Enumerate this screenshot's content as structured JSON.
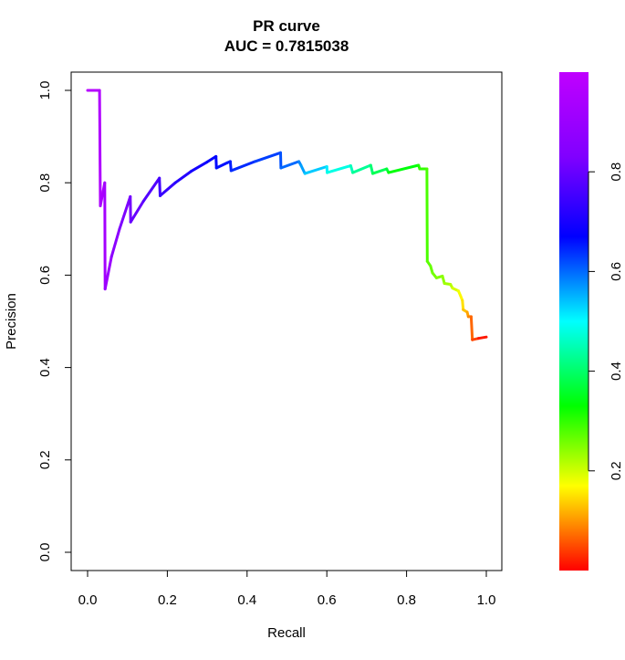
{
  "chart_data": {
    "type": "line",
    "title": "PR curve",
    "subtitle": "AUC = 0.7815038",
    "xlabel": "Recall",
    "ylabel": "Precision",
    "xlim": [
      0,
      1
    ],
    "ylim": [
      0,
      1
    ],
    "x_ticks": [
      "0.0",
      "0.2",
      "0.4",
      "0.6",
      "0.8",
      "1.0"
    ],
    "y_ticks": [
      "0.0",
      "0.2",
      "0.4",
      "0.6",
      "0.8",
      "1.0"
    ],
    "grid": false,
    "colorbar": {
      "palette": "rainbow",
      "range": [
        0,
        1
      ],
      "ticks": [
        "0.2",
        "0.4",
        "0.6",
        "0.8"
      ]
    },
    "series": [
      {
        "points": [
          [
            0.0,
            1.0,
            0.995
          ],
          [
            0.03,
            1.0,
            0.99
          ],
          [
            0.032,
            0.75,
            0.985
          ],
          [
            0.043,
            0.8,
            0.98
          ],
          [
            0.044,
            0.57,
            0.975
          ],
          [
            0.06,
            0.64,
            0.965
          ],
          [
            0.08,
            0.7,
            0.95
          ],
          [
            0.107,
            0.77,
            0.94
          ],
          [
            0.108,
            0.715,
            0.935
          ],
          [
            0.14,
            0.76,
            0.92
          ],
          [
            0.18,
            0.81,
            0.9
          ],
          [
            0.182,
            0.772,
            0.895
          ],
          [
            0.22,
            0.8,
            0.88
          ],
          [
            0.26,
            0.825,
            0.865
          ],
          [
            0.3,
            0.845,
            0.85
          ],
          [
            0.322,
            0.857,
            0.84
          ],
          [
            0.323,
            0.832,
            0.835
          ],
          [
            0.35,
            0.843,
            0.825
          ],
          [
            0.358,
            0.846,
            0.82
          ],
          [
            0.36,
            0.826,
            0.815
          ],
          [
            0.42,
            0.846,
            0.8
          ],
          [
            0.484,
            0.865,
            0.78
          ],
          [
            0.485,
            0.832,
            0.77
          ],
          [
            0.53,
            0.846,
            0.74
          ],
          [
            0.535,
            0.838,
            0.72
          ],
          [
            0.545,
            0.82,
            0.7
          ],
          [
            0.6,
            0.835,
            0.65
          ],
          [
            0.601,
            0.822,
            0.64
          ],
          [
            0.66,
            0.837,
            0.58
          ],
          [
            0.665,
            0.822,
            0.57
          ],
          [
            0.71,
            0.838,
            0.52
          ],
          [
            0.715,
            0.82,
            0.51
          ],
          [
            0.75,
            0.83,
            0.47
          ],
          [
            0.755,
            0.822,
            0.46
          ],
          [
            0.83,
            0.838,
            0.4
          ],
          [
            0.833,
            0.83,
            0.39
          ],
          [
            0.851,
            0.83,
            0.37
          ],
          [
            0.852,
            0.63,
            0.35
          ],
          [
            0.86,
            0.62,
            0.34
          ],
          [
            0.865,
            0.605,
            0.33
          ],
          [
            0.875,
            0.594,
            0.32
          ],
          [
            0.89,
            0.598,
            0.31
          ],
          [
            0.895,
            0.582,
            0.3
          ],
          [
            0.91,
            0.58,
            0.28
          ],
          [
            0.915,
            0.572,
            0.26
          ],
          [
            0.93,
            0.566,
            0.23
          ],
          [
            0.935,
            0.556,
            0.21
          ],
          [
            0.94,
            0.545,
            0.2
          ],
          [
            0.942,
            0.525,
            0.17
          ],
          [
            0.952,
            0.52,
            0.15
          ],
          [
            0.955,
            0.51,
            0.12
          ],
          [
            0.962,
            0.51,
            0.1
          ],
          [
            0.965,
            0.46,
            0.07
          ],
          [
            0.98,
            0.463,
            0.04
          ],
          [
            1.0,
            0.466,
            0.0
          ]
        ]
      }
    ]
  }
}
